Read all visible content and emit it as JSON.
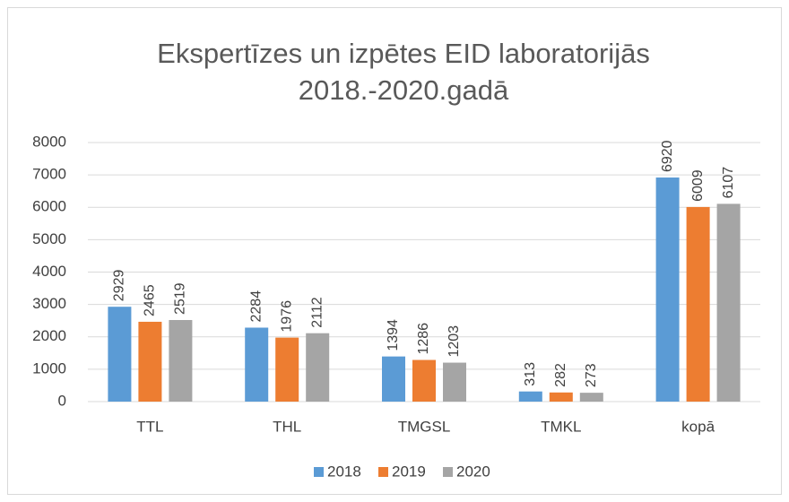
{
  "chart_data": {
    "type": "bar",
    "title": [
      "Ekspertīzes un izpētes  EID laboratorijās",
      "2018.-2020.gadā"
    ],
    "categories": [
      "TTL",
      "THL",
      "TMGSL",
      "TMKL",
      "kopā"
    ],
    "series": [
      {
        "name": "2018",
        "color": "#5b9bd5",
        "values": [
          2929,
          2284,
          1394,
          313,
          6920
        ]
      },
      {
        "name": "2019",
        "color": "#ed7d31",
        "values": [
          2465,
          1976,
          1286,
          282,
          6009
        ]
      },
      {
        "name": "2020",
        "color": "#a5a5a5",
        "values": [
          2519,
          2112,
          1203,
          273,
          6107
        ]
      }
    ],
    "ylim": [
      0,
      8000
    ],
    "yticks": [
      0,
      1000,
      2000,
      3000,
      4000,
      5000,
      6000,
      7000,
      8000
    ],
    "grid": true,
    "legend": "bottom"
  }
}
